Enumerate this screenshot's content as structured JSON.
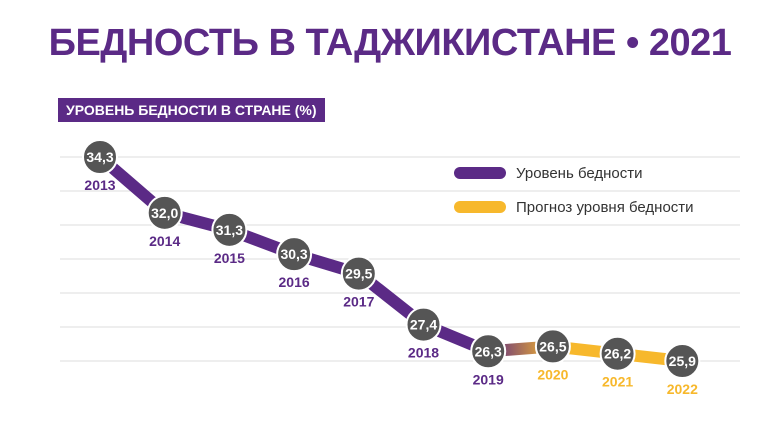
{
  "title": "БЕДНОСТЬ В ТАДЖИКИСТАНЕ • 2021",
  "subtitle": "УРОВЕНЬ БЕДНОСТИ В СТРАНЕ  (%)",
  "legend": {
    "items": [
      {
        "label": "Уровень бедности",
        "color": "#5b2a86"
      },
      {
        "label": "Прогноз уровня бедности",
        "color": "#f7b82c"
      }
    ]
  },
  "colors": {
    "actual": "#5b2a86",
    "forecast": "#f7b82c",
    "marker": "#555555",
    "grid": "#dddddd"
  },
  "chart_data": {
    "type": "line",
    "title": "БЕДНОСТЬ В ТАДЖИКИСТАНЕ • 2021",
    "subtitle": "УРОВЕНЬ БЕДНОСТИ В СТРАНЕ  (%)",
    "grid": true,
    "legend_position": "top-right",
    "series": [
      {
        "name": "Уровень бедности",
        "x": [
          "2013",
          "2014",
          "2015",
          "2016",
          "2017",
          "2018",
          "2019"
        ],
        "values": [
          34.3,
          32.0,
          31.3,
          30.3,
          29.5,
          27.4,
          26.3
        ]
      },
      {
        "name": "Прогноз уровня бедности",
        "x": [
          "2020",
          "2021",
          "2022"
        ],
        "values": [
          26.5,
          26.2,
          25.9
        ]
      }
    ],
    "points": [
      {
        "year": "2013",
        "label": "34,3",
        "value": 34.3,
        "forecast": false
      },
      {
        "year": "2014",
        "label": "32,0",
        "value": 32.0,
        "forecast": false
      },
      {
        "year": "2015",
        "label": "31,3",
        "value": 31.3,
        "forecast": false
      },
      {
        "year": "2016",
        "label": "30,3",
        "value": 30.3,
        "forecast": false
      },
      {
        "year": "2017",
        "label": "29,5",
        "value": 29.5,
        "forecast": false
      },
      {
        "year": "2018",
        "label": "27,4",
        "value": 27.4,
        "forecast": false
      },
      {
        "year": "2019",
        "label": "26,3",
        "value": 26.3,
        "forecast": false
      },
      {
        "year": "2020",
        "label": "26,5",
        "value": 26.5,
        "forecast": true
      },
      {
        "year": "2021",
        "label": "26,2",
        "value": 26.2,
        "forecast": true
      },
      {
        "year": "2022",
        "label": "25,9",
        "value": 25.9,
        "forecast": true
      }
    ]
  }
}
